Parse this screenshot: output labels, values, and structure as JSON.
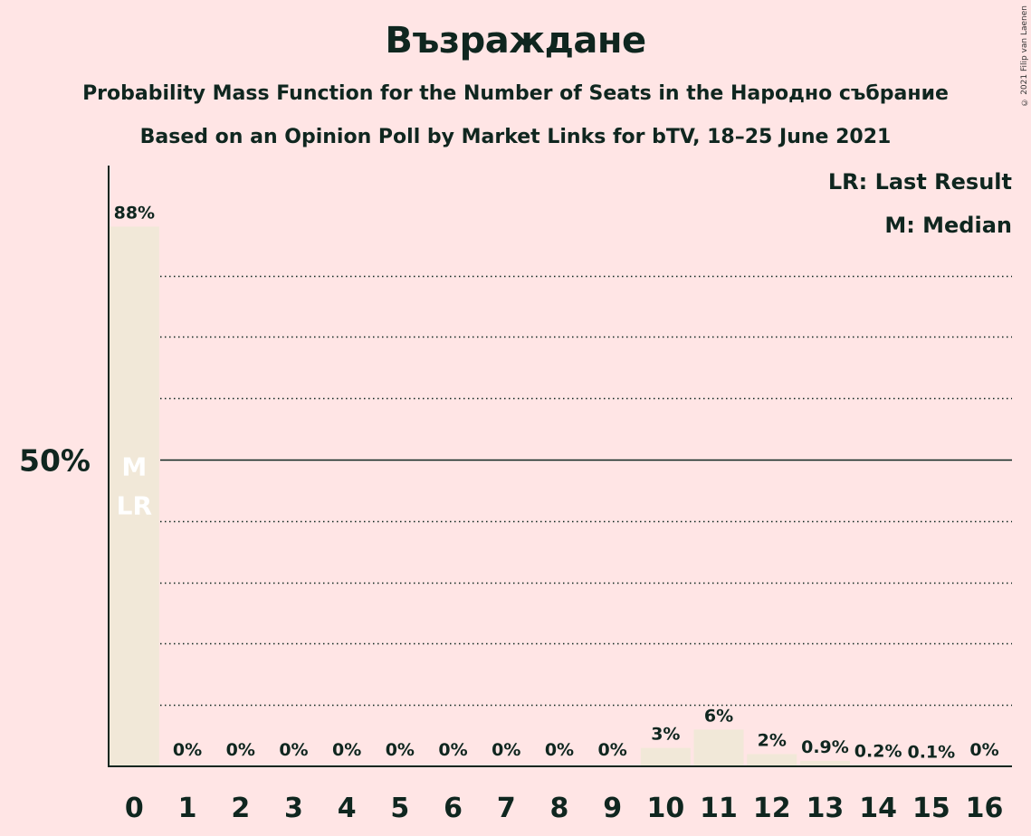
{
  "title": "Възраждане",
  "subtitle1": "Probability Mass Function for the Number of Seats in the Народно събрание",
  "subtitle2": "Based on an Opinion Poll by Market Links for bTV, 18–25 June 2021",
  "copyright": "© 2021 Filip van Laenen",
  "colors": {
    "background": "#ffe5e5",
    "bar": "#f1e8d8",
    "text": "#0f261f",
    "marker_text": "#ffffff"
  },
  "chart_data": {
    "type": "bar",
    "categories": [
      "0",
      "1",
      "2",
      "3",
      "4",
      "5",
      "6",
      "7",
      "8",
      "9",
      "10",
      "11",
      "12",
      "13",
      "14",
      "15",
      "16"
    ],
    "values": [
      88,
      0,
      0,
      0,
      0,
      0,
      0,
      0,
      0,
      0,
      3,
      6,
      2,
      0.9,
      0.2,
      0.1,
      0
    ],
    "value_labels": [
      "88%",
      "0%",
      "0%",
      "0%",
      "0%",
      "0%",
      "0%",
      "0%",
      "0%",
      "0%",
      "3%",
      "6%",
      "2%",
      "0.9%",
      "0.2%",
      "0.1%",
      "0%"
    ],
    "ylim": [
      0,
      95
    ],
    "y_tick_label": "50%",
    "y_tick_value": 50,
    "dotted_gridlines": [
      10,
      20,
      30,
      40,
      60,
      70,
      80
    ],
    "markers": {
      "median": "M",
      "last_result": "LR",
      "at_category": "0"
    },
    "legend": [
      "LR: Last Result",
      "M: Median"
    ],
    "legend_position": "top-right"
  }
}
